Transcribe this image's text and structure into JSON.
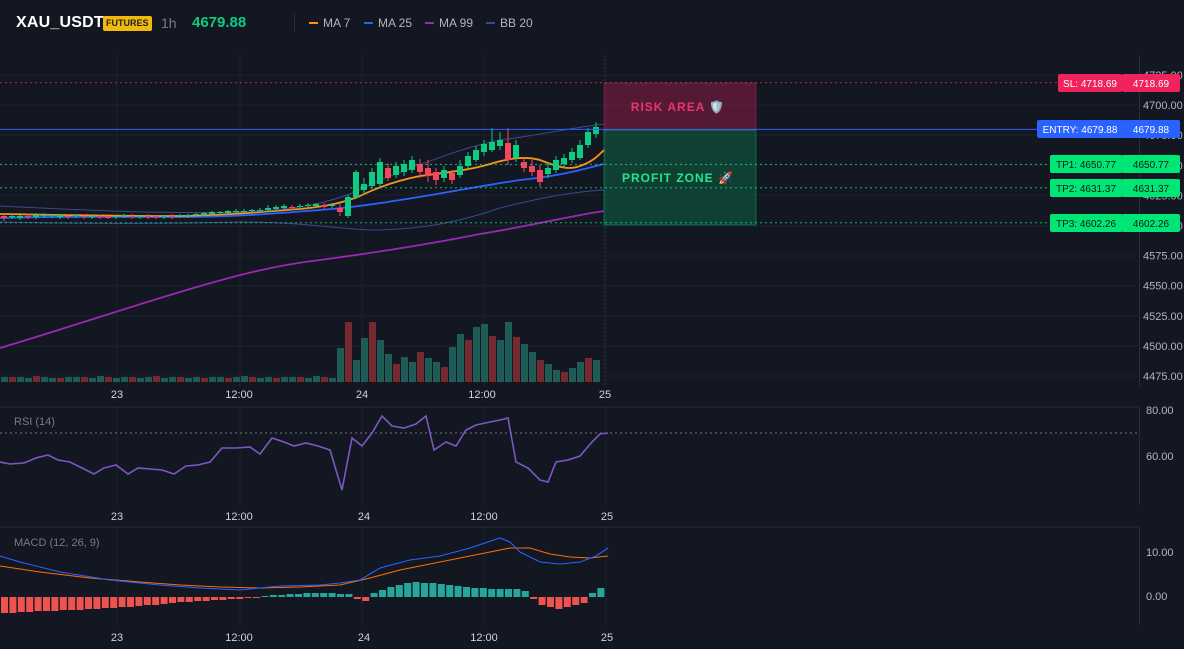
{
  "header": {
    "symbol": "XAU_USDT",
    "badge": "FUTURES",
    "timeframe": "1h",
    "price": "4679.88",
    "legend": [
      {
        "label": "MA 7",
        "color": "#f7931a"
      },
      {
        "label": "MA 25",
        "color": "#2962ff"
      },
      {
        "label": "MA 99",
        "color": "#9c27b0"
      },
      {
        "label": "BB 20",
        "color": "#3a4a8a"
      }
    ]
  },
  "price_axis": {
    "ticks": [
      "4725.00",
      "4700.00",
      "4675.00",
      "4650.00",
      "4625.00",
      "4600.00",
      "4575.00",
      "4550.00",
      "4525.00",
      "4500.00",
      "4475.00"
    ]
  },
  "time_axis": {
    "labels": [
      "23",
      "12:00",
      "24",
      "12:00",
      "25"
    ]
  },
  "levels": {
    "sl": {
      "label": "SL: 4718.69",
      "price": "4718.69",
      "value": 4718.69,
      "color": "#f0245c"
    },
    "entry": {
      "label": "ENTRY: 4679.88",
      "price": "4679.88",
      "value": 4679.88,
      "color": "#2962ff"
    },
    "tp1": {
      "label": "TP1: 4650.77",
      "price": "4650.77",
      "value": 4650.77,
      "color": "#00e676"
    },
    "tp2": {
      "label": "TP2: 4631.37",
      "price": "4631.37",
      "value": 4631.37,
      "color": "#00e676"
    },
    "tp3": {
      "label": "TP3: 4602.26",
      "price": "4602.26",
      "value": 4602.26,
      "color": "#00e676"
    }
  },
  "zones": {
    "risk_label": "RISK AREA 🛡️",
    "profit_label": "PROFIT ZONE 🚀"
  },
  "rsi": {
    "label": "RSI (14)",
    "ticks": [
      "80.00",
      "60.00"
    ]
  },
  "macd": {
    "label": "MACD (12, 26, 9)",
    "ticks": [
      "10.00",
      "0.00"
    ]
  },
  "colors": {
    "up": "#26a69a",
    "down": "#ef5350",
    "candle_up": "#0ecb81",
    "candle_down": "#f6465d",
    "ma7": "#f7931a",
    "ma25": "#2962ff",
    "ma99": "#9c27b0",
    "bb": "#3a4a8a",
    "rsi": "#7e57c2",
    "macd_line": "#2962ff",
    "signal_line": "#ff6d00"
  }
}
